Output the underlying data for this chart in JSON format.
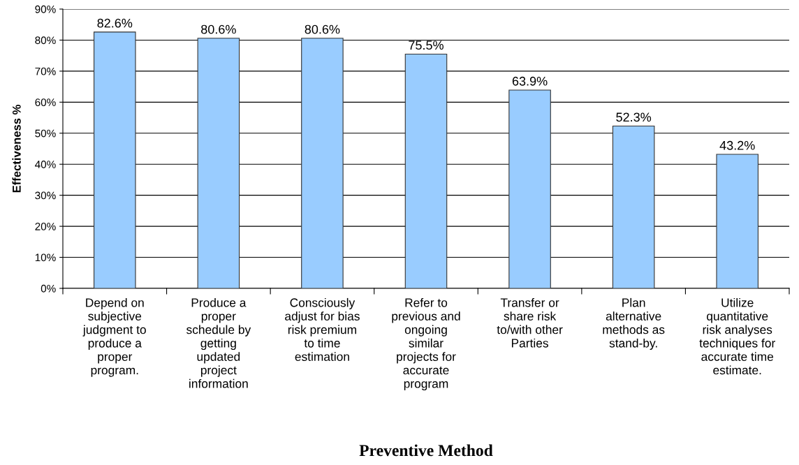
{
  "chart_data": {
    "type": "bar",
    "xlabel": "Preventive Method",
    "ylabel": "Effectiveness %",
    "categories": [
      "Depend on\nsubjective\njudgment to\nproduce a\nproper\nprogram.",
      "Produce a\nproper\nschedule by\ngetting\nupdated\nproject\ninformation",
      "Consciously\nadjust for bias\nrisk premium\nto time\nestimation",
      "Refer to\nprevious and\nongoing\nsimilar\nprojects for\naccurate\nprogram",
      "Transfer or\nshare risk\nto/with other\nParties",
      "Plan\nalternative\nmethods as\nstand-by.",
      "Utilize\nquantitative\nrisk analyses\ntechniques for\naccurate time\nestimate."
    ],
    "values": [
      82.6,
      80.6,
      80.6,
      75.5,
      63.9,
      52.3,
      43.2
    ],
    "value_labels": [
      "82.6%",
      "80.6%",
      "80.6%",
      "75.5%",
      "63.9%",
      "52.3%",
      "43.2%"
    ],
    "color": "#99ccff",
    "ylim": [
      0,
      90
    ],
    "yticks": [
      {
        "value": 0,
        "label": "0%"
      },
      {
        "value": 10,
        "label": "10%"
      },
      {
        "value": 20,
        "label": "20%"
      },
      {
        "value": 30,
        "label": "30%"
      },
      {
        "value": 40,
        "label": "40%"
      },
      {
        "value": 50,
        "label": "50%"
      },
      {
        "value": 60,
        "label": "60%"
      },
      {
        "value": 70,
        "label": "70%"
      },
      {
        "value": 80,
        "label": "80%"
      },
      {
        "value": 90,
        "label": "90%"
      }
    ],
    "grid": "y",
    "legend": false
  }
}
